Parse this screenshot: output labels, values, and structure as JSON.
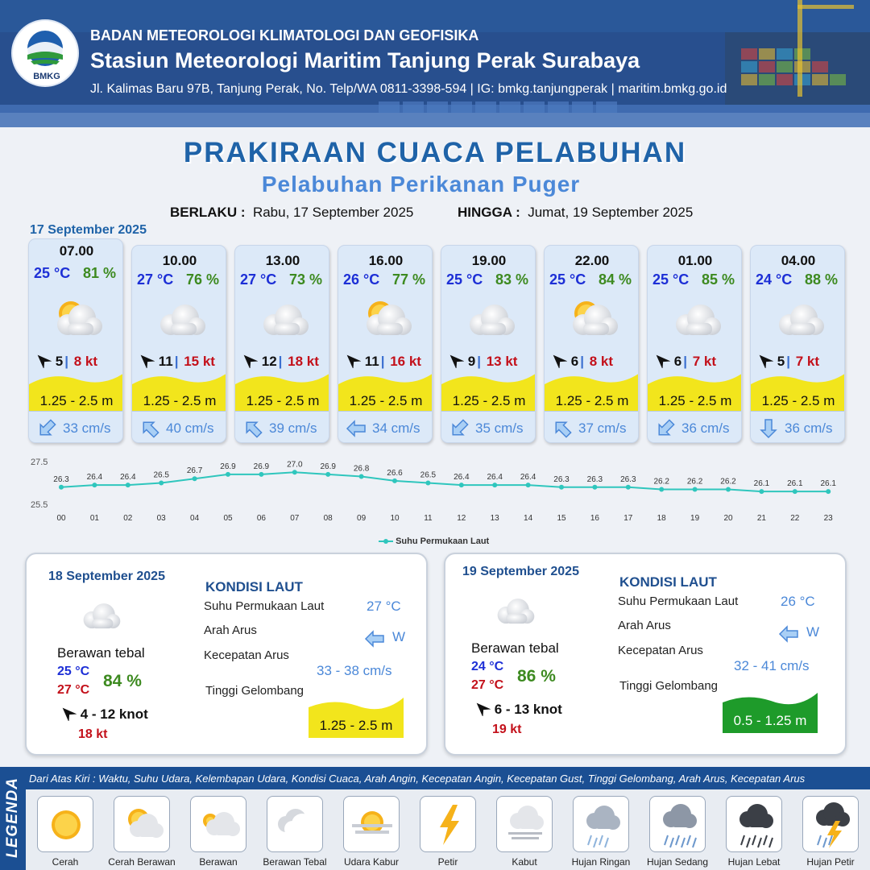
{
  "header": {
    "logo_text": "BMKG",
    "org": "BADAN METEOROLOGI KLIMATOLOGI DAN GEOFISIKA",
    "station": "Stasiun Meteorologi Maritim Tanjung Perak Surabaya",
    "address": "Jl. Kalimas Baru 97B, Tanjung Perak, No. Telp/WA 0811-3398-594 | IG: bmkg.tanjungperak | maritim.bmkg.go.id"
  },
  "title": "PRAKIRAAN CUACA PELABUHAN",
  "subtitle": "Pelabuhan Perikanan Puger",
  "validity": {
    "from_label": "BERLAKU :",
    "from_value": "Rabu, 17 September 2025",
    "to_label": "HINGGA :",
    "to_value": "Jumat, 19 September 2025"
  },
  "day1_date": "17 September 2025",
  "hourly": [
    {
      "time": "07.00",
      "temp": "25 °C",
      "hum": "81 %",
      "icon": "partly-cloudy-icon",
      "wind": "5",
      "gust": "8 kt",
      "wind_dir": "W",
      "wave": "1.25 - 2.5 m",
      "current": "33 cm/s",
      "cur_dir": "SW"
    },
    {
      "time": "10.00",
      "temp": "27 °C",
      "hum": "76 %",
      "icon": "overcast-icon",
      "wind": "11",
      "gust": "15 kt",
      "wind_dir": "NW",
      "wave": "1.25 - 2.5 m",
      "current": "40 cm/s",
      "cur_dir": "NW"
    },
    {
      "time": "13.00",
      "temp": "27 °C",
      "hum": "73 %",
      "icon": "overcast-icon",
      "wind": "12",
      "gust": "18 kt",
      "wind_dir": "NW",
      "wave": "1.25 - 2.5 m",
      "current": "39 cm/s",
      "cur_dir": "NW"
    },
    {
      "time": "16.00",
      "temp": "26 °C",
      "hum": "77 %",
      "icon": "partly-cloudy-icon",
      "wind": "11",
      "gust": "16 kt",
      "wind_dir": "NW",
      "wave": "1.25 - 2.5 m",
      "current": "34 cm/s",
      "cur_dir": "W"
    },
    {
      "time": "19.00",
      "temp": "25 °C",
      "hum": "83 %",
      "icon": "overcast-icon",
      "wind": "9",
      "gust": "13 kt",
      "wind_dir": "NW",
      "wave": "1.25 - 2.5 m",
      "current": "35 cm/s",
      "cur_dir": "SW"
    },
    {
      "time": "22.00",
      "temp": "25 °C",
      "hum": "84 %",
      "icon": "partly-cloudy-icon",
      "wind": "6",
      "gust": "8 kt",
      "wind_dir": "NW",
      "wave": "1.25 - 2.5 m",
      "current": "37 cm/s",
      "cur_dir": "NW"
    },
    {
      "time": "01.00",
      "temp": "25 °C",
      "hum": "85 %",
      "icon": "overcast-icon",
      "wind": "6",
      "gust": "7 kt",
      "wind_dir": "NW",
      "wave": "1.25 - 2.5 m",
      "current": "36 cm/s",
      "cur_dir": "SW"
    },
    {
      "time": "04.00",
      "temp": "24 °C",
      "hum": "88 %",
      "icon": "overcast-icon",
      "wind": "5",
      "gust": "7 kt",
      "wind_dir": "NW",
      "wave": "1.25 - 2.5 m",
      "current": "36 cm/s",
      "cur_dir": "S"
    }
  ],
  "chart_data": {
    "type": "line",
    "x": [
      "00",
      "01",
      "02",
      "03",
      "04",
      "05",
      "06",
      "07",
      "08",
      "09",
      "10",
      "11",
      "12",
      "13",
      "14",
      "15",
      "16",
      "17",
      "18",
      "19",
      "20",
      "21",
      "22",
      "23"
    ],
    "series": [
      {
        "name": "Suhu Permukaan Laut",
        "values": [
          26.3,
          26.4,
          26.4,
          26.5,
          26.7,
          26.9,
          26.9,
          27.0,
          26.9,
          26.8,
          26.6,
          26.5,
          26.4,
          26.4,
          26.4,
          26.3,
          26.3,
          26.3,
          26.2,
          26.2,
          26.2,
          26.1,
          26.1,
          26.1
        ],
        "color": "#2fc6bd"
      }
    ],
    "y_ticks": [
      "27.5",
      "25.5"
    ],
    "ylim": [
      25.5,
      27.5
    ],
    "legend": "bottom-center"
  },
  "days": [
    {
      "date": "18 September 2025",
      "condition": "Berawan tebal",
      "icon": "overcast-icon",
      "tmin": "25 °C",
      "tmax": "27 °C",
      "hum": "84 %",
      "wind": "4  - 12 knot",
      "gust": "18 kt",
      "kondisi_title": "KONDISI LAUT",
      "sst_label": "Suhu Permukaan Laut",
      "sst": "27 °C",
      "dir_label": "Arah Arus",
      "dir": "W",
      "speed_label": "Kecepatan Arus",
      "speed": "33  - 38 cm/s",
      "wave_label": "Tinggi Gelombang",
      "wave": "1.25 - 2.5 m",
      "wave_color": "#f2e51c"
    },
    {
      "date": "19 September 2025",
      "condition": "Berawan tebal",
      "icon": "overcast-icon",
      "tmin": "24 °C",
      "tmax": "27 °C",
      "hum": "86 %",
      "wind": "6  - 13 knot",
      "gust": "19 kt",
      "kondisi_title": "KONDISI LAUT",
      "sst_label": "Suhu Permukaan Laut",
      "sst": "26 °C",
      "dir_label": "Arah Arus",
      "dir": "W",
      "speed_label": "Kecepatan Arus",
      "speed": "32 - 41 cm/s",
      "wave_label": "Tinggi Gelombang",
      "wave": "0.5 - 1.25 m",
      "wave_color": "#1e9b2a"
    }
  ],
  "legend": {
    "title": "LEGENDA",
    "desc": "Dari Atas Kiri : Waktu, Suhu Udara, Kelembapan Udara, Kondisi Cuaca, Arah Angin, Kecepatan Angin, Kecepatan Gust, Tinggi Gelombang, Arah Arus, Kecepatan Arus",
    "items": [
      {
        "label": "Cerah",
        "icon": "sun-icon"
      },
      {
        "label": "Cerah Berawan",
        "icon": "sun-cloud-icon"
      },
      {
        "label": "Berawan",
        "icon": "cloudy-icon"
      },
      {
        "label": "Berawan Tebal",
        "icon": "overcast-icon"
      },
      {
        "label": "Udara Kabur",
        "icon": "haze-icon"
      },
      {
        "label": "Petir",
        "icon": "lightning-icon"
      },
      {
        "label": "Kabut",
        "icon": "fog-icon"
      },
      {
        "label": "Hujan Ringan",
        "icon": "light-rain-icon"
      },
      {
        "label": "Hujan Sedang",
        "icon": "moderate-rain-icon"
      },
      {
        "label": "Hujan Lebat",
        "icon": "heavy-rain-icon"
      },
      {
        "label": "Hujan Petir",
        "icon": "thunderstorm-icon"
      }
    ]
  }
}
